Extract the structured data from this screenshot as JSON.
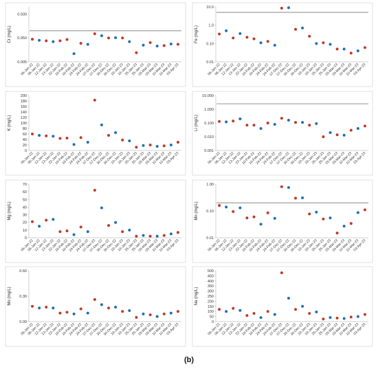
{
  "caption": "(b)",
  "colors": {
    "blue": "#1f6fb5",
    "red": "#c0392b",
    "reference_line": "#9e9e9e"
  },
  "dates": [
    "06-Jan-22",
    "06-Jan-22",
    "12-Jan-22",
    "13-Jan-22",
    "22-Jan-22",
    "16-Feb-22",
    "16-Feb-22",
    "24-Feb-22",
    "24-Feb-22",
    "07-Dec-22",
    "07-Dec-22",
    "30-Dec-22",
    "30-Dec-22",
    "19-Jan-23",
    "19-Jan-23",
    "25-Jan-23",
    "25-Jan-23",
    "05-Mar-23",
    "05-Mar-23",
    "10-Mar-23",
    "10-Mar-23",
    "03-Apr-23"
  ],
  "chart_data": [
    {
      "type": "scatter",
      "element": "Cr",
      "ylabel": "Cr (mg/L)",
      "scale": "log",
      "ylim": [
        0.005,
        1
      ],
      "yticks": [
        0.005,
        0.05,
        0.5
      ],
      "ytick_labels": [
        "0.005",
        "0.050",
        "0.500"
      ],
      "reference_line": 0.1,
      "values": [
        0.044,
        0.04,
        0.038,
        0.035,
        0.038,
        0.043,
        0.011,
        0.03,
        0.027,
        0.075,
        0.062,
        0.05,
        0.051,
        0.05,
        0.035,
        0.012,
        0.025,
        0.032,
        0.023,
        0.024,
        0.028,
        0.027
      ],
      "colors": [
        "red",
        "blue",
        "red",
        "blue",
        "red",
        "red",
        "blue",
        "red",
        "blue",
        "red",
        "blue",
        "red",
        "blue",
        "red",
        "blue",
        "red",
        "blue",
        "red",
        "blue",
        "red",
        "blue",
        "red"
      ]
    },
    {
      "type": "scatter",
      "element": "Fe",
      "ylabel": "Fe (mg/L)",
      "scale": "log",
      "ylim": [
        0.01,
        10
      ],
      "yticks": [
        0.01,
        0.1,
        1,
        10
      ],
      "ytick_labels": [
        "0.01",
        "0.10",
        "1.0",
        "10.0"
      ],
      "reference_line": 5,
      "values": [
        0.33,
        0.5,
        0.2,
        0.35,
        0.22,
        0.18,
        0.11,
        0.13,
        0.08,
        8.5,
        9,
        0.6,
        0.7,
        0.25,
        0.1,
        0.11,
        0.09,
        0.05,
        0.05,
        0.03,
        0.04,
        0.06
      ],
      "colors": [
        "red",
        "blue",
        "red",
        "blue",
        "red",
        "red",
        "blue",
        "red",
        "blue",
        "red",
        "blue",
        "red",
        "blue",
        "red",
        "blue",
        "red",
        "blue",
        "red",
        "blue",
        "red",
        "blue",
        "red"
      ]
    },
    {
      "type": "scatter",
      "element": "K",
      "ylabel": "K (mg/L)",
      "scale": "linear",
      "ylim": [
        0,
        200
      ],
      "yticks": [
        0,
        20,
        40,
        60,
        80,
        100,
        120,
        140,
        160,
        180,
        200
      ],
      "ytick_labels": [
        "0",
        "20",
        "40",
        "60",
        "80",
        "100",
        "120",
        "140",
        "160",
        "180",
        "200"
      ],
      "reference_line": null,
      "values": [
        60,
        55,
        53,
        52,
        44,
        45,
        22,
        47,
        30,
        183,
        93,
        55,
        65,
        38,
        35,
        12,
        18,
        20,
        15,
        17,
        20,
        30
      ],
      "colors": [
        "red",
        "blue",
        "red",
        "blue",
        "red",
        "red",
        "blue",
        "red",
        "blue",
        "red",
        "blue",
        "red",
        "blue",
        "red",
        "blue",
        "red",
        "blue",
        "red",
        "blue",
        "red",
        "blue",
        "red"
      ]
    },
    {
      "type": "scatter",
      "element": "Li",
      "ylabel": "Li (mg/L)",
      "scale": "log",
      "ylim": [
        0.001,
        10
      ],
      "yticks": [
        0.001,
        0.01,
        0.1,
        1,
        10
      ],
      "ytick_labels": [
        "0.001",
        "0.010",
        "0.100",
        "1.000",
        "10.000"
      ],
      "reference_line": 2.5,
      "values": [
        0.13,
        0.12,
        0.14,
        0.2,
        0.07,
        0.07,
        0.04,
        0.1,
        0.08,
        0.22,
        0.16,
        0.11,
        0.11,
        0.07,
        0.09,
        0.01,
        0.02,
        0.014,
        0.013,
        0.03,
        0.04,
        0.06
      ],
      "colors": [
        "red",
        "blue",
        "red",
        "blue",
        "red",
        "red",
        "blue",
        "red",
        "blue",
        "red",
        "blue",
        "red",
        "blue",
        "red",
        "blue",
        "red",
        "blue",
        "red",
        "blue",
        "red",
        "blue",
        "red"
      ]
    },
    {
      "type": "scatter",
      "element": "Mg",
      "ylabel": "Mg (mg/L)",
      "scale": "linear",
      "ylim": [
        0,
        70
      ],
      "yticks": [
        0,
        10,
        20,
        30,
        40,
        50,
        60,
        70
      ],
      "ytick_labels": [
        "0",
        "10",
        "20",
        "30",
        "40",
        "50",
        "60",
        "70"
      ],
      "reference_line": null,
      "values": [
        21,
        15,
        23,
        24,
        8,
        9,
        4,
        14,
        8,
        62,
        39,
        16,
        20,
        8,
        10,
        2,
        3,
        2,
        2,
        3,
        5,
        7
      ],
      "colors": [
        "red",
        "blue",
        "red",
        "blue",
        "red",
        "red",
        "blue",
        "red",
        "blue",
        "red",
        "blue",
        "red",
        "blue",
        "red",
        "blue",
        "red",
        "blue",
        "red",
        "blue",
        "red",
        "blue",
        "red"
      ]
    },
    {
      "type": "scatter",
      "element": "Mn",
      "ylabel": "Mn (mg/L)",
      "scale": "log",
      "ylim": [
        0.01,
        1
      ],
      "yticks": [
        0.01,
        0.1,
        1
      ],
      "ytick_labels": [
        "0.01",
        "0.10",
        "1.00"
      ],
      "reference_line": 0.2,
      "values": [
        0.16,
        0.14,
        0.095,
        0.13,
        0.055,
        0.06,
        0.032,
        0.085,
        0.053,
        0.8,
        0.75,
        0.3,
        0.31,
        0.077,
        0.09,
        0.05,
        0.055,
        0.015,
        0.027,
        0.034,
        0.087,
        0.11
      ],
      "colors": [
        "red",
        "blue",
        "red",
        "blue",
        "red",
        "red",
        "blue",
        "red",
        "blue",
        "red",
        "blue",
        "red",
        "blue",
        "red",
        "blue",
        "red",
        "blue",
        "red",
        "blue",
        "red",
        "blue",
        "red"
      ]
    },
    {
      "type": "scatter",
      "element": "Mo",
      "ylabel": "Mo (mg/L)",
      "scale": "linear",
      "ylim": [
        0,
        0.6
      ],
      "yticks": [
        0,
        0.3,
        0.6
      ],
      "ytick_labels": [
        "0.00",
        "0.30",
        "0.60"
      ],
      "reference_line": null,
      "values": [
        0.18,
        0.16,
        0.17,
        0.16,
        0.1,
        0.11,
        0.09,
        0.15,
        0.1,
        0.26,
        0.2,
        0.16,
        0.17,
        0.12,
        0.13,
        0.05,
        0.09,
        0.08,
        0.06,
        0.09,
        0.1,
        0.12
      ],
      "colors": [
        "red",
        "blue",
        "red",
        "blue",
        "red",
        "red",
        "blue",
        "red",
        "blue",
        "red",
        "blue",
        "red",
        "blue",
        "red",
        "blue",
        "red",
        "blue",
        "red",
        "blue",
        "red",
        "blue",
        "red"
      ]
    },
    {
      "type": "scatter",
      "element": "Na",
      "ylabel": "Na (mg/L)",
      "scale": "linear",
      "ylim": [
        0,
        500
      ],
      "yticks": [
        0,
        50,
        100,
        150,
        200,
        250,
        300,
        350,
        400,
        450,
        500
      ],
      "ytick_labels": [
        "0",
        "50",
        "100",
        "150",
        "200",
        "250",
        "300",
        "350",
        "400",
        "450",
        "500"
      ],
      "reference_line": null,
      "values": [
        120,
        100,
        130,
        110,
        60,
        80,
        40,
        100,
        70,
        480,
        230,
        120,
        150,
        80,
        95,
        25,
        40,
        35,
        30,
        45,
        50,
        70
      ],
      "colors": [
        "red",
        "blue",
        "red",
        "blue",
        "red",
        "red",
        "blue",
        "red",
        "blue",
        "red",
        "blue",
        "red",
        "blue",
        "red",
        "blue",
        "red",
        "blue",
        "red",
        "blue",
        "red",
        "blue",
        "red"
      ]
    }
  ]
}
